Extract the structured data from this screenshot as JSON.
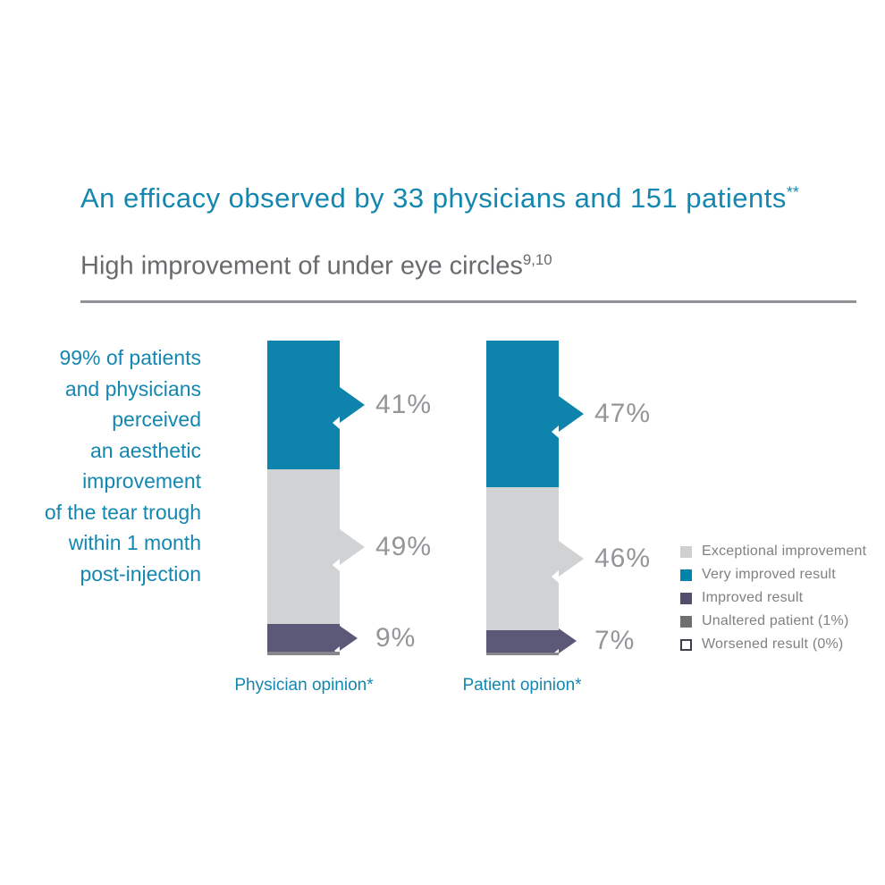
{
  "colors": {
    "teal": "#0e84ac",
    "teal_text": "#1487b0",
    "light_gray": "#d1d2d4",
    "purple": "#5b5977",
    "unaltered_gray": "#85878a",
    "value_label_gray": "#939598",
    "subtitle_gray": "#6a6b6e",
    "legend_text_gray": "#808184",
    "divider_gray": "#909296",
    "white": "#ffffff"
  },
  "header": {
    "title": "An efficacy observed by 33 physicians and 151 patients",
    "title_superscript": "**",
    "subtitle": "High improvement of under eye circles",
    "subtitle_superscript": "9,10"
  },
  "sidenote": {
    "lines": [
      "99% of patients",
      "and physicians",
      "perceived",
      "an aesthetic",
      "improvement",
      "of the tear trough",
      "within 1 month",
      "post-injection"
    ]
  },
  "chart_data": {
    "type": "bar",
    "subtype": "stacked-vertical-100pct",
    "title": "An efficacy observed by 33 physicians and 151 patients**",
    "subtitle": "High improvement of under eye circles9,10",
    "categories": [
      "Physician opinion*",
      "Patient opinion*"
    ],
    "series": [
      {
        "name": "Very improved result",
        "values": [
          41,
          47
        ],
        "color": "#0e84ac"
      },
      {
        "name": "Exceptional improvement",
        "values": [
          49,
          46
        ],
        "color": "#d1d2d4"
      },
      {
        "name": "Improved result",
        "values": [
          9,
          7
        ],
        "color": "#5b5977"
      },
      {
        "name": "Unaltered patient",
        "values": [
          1,
          1
        ],
        "color": "#85878a"
      },
      {
        "name": "Worsened result",
        "values": [
          0,
          0
        ],
        "color": "#ffffff"
      }
    ],
    "value_labels": true,
    "axis": "none",
    "legend_position": "right",
    "bars": [
      {
        "caption": "Physician opinion*",
        "segments": [
          {
            "label": "41%",
            "value": 41,
            "color": "#0e84ac"
          },
          {
            "label": "49%",
            "value": 49,
            "color": "#d1d2d4"
          },
          {
            "label": "9%",
            "value": 9,
            "color": "#5b5977"
          },
          {
            "label": "",
            "value": 1,
            "color": "#85878a"
          }
        ]
      },
      {
        "caption": "Patient opinion*",
        "segments": [
          {
            "label": "47%",
            "value": 47,
            "color": "#0e84ac"
          },
          {
            "label": "46%",
            "value": 46,
            "color": "#d1d2d4"
          },
          {
            "label": "7%",
            "value": 7,
            "color": "#5b5977"
          },
          {
            "label": "",
            "value": 1,
            "color": "#85878a"
          }
        ]
      }
    ]
  },
  "legend": {
    "items": [
      {
        "label": "Exceptional improvement",
        "color": "#cfd0d2",
        "outlined": false
      },
      {
        "label": "Very improved result",
        "color": "#0084ab",
        "outlined": false
      },
      {
        "label": "Improved result",
        "color": "#524f6c",
        "outlined": false
      },
      {
        "label": "Unaltered patient (1%)",
        "color": "#6d6f73",
        "outlined": false
      },
      {
        "label": "Worsened result (0%)",
        "color": "#ffffff",
        "outlined": true
      }
    ]
  }
}
